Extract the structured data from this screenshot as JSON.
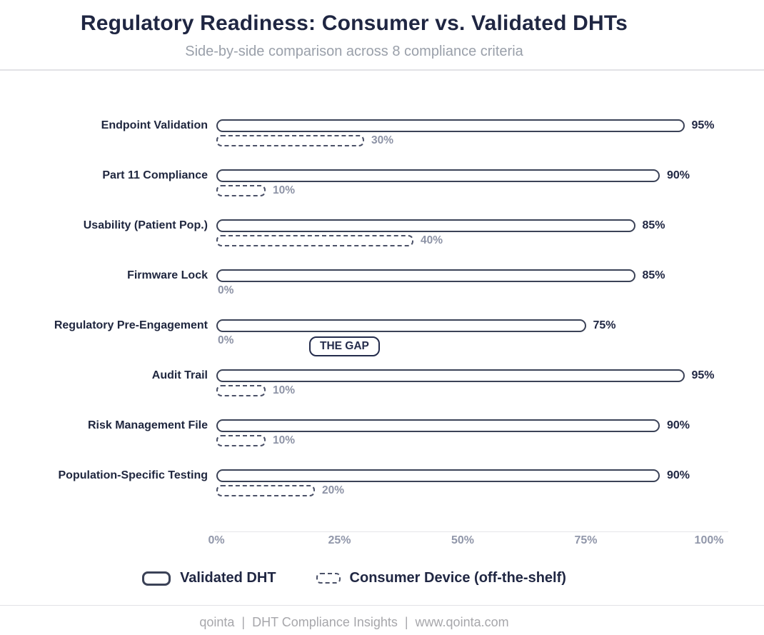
{
  "header": {
    "title": "Regulatory Readiness: Consumer vs. Validated DHTs",
    "subtitle": "Side-by-side comparison across 8 compliance criteria"
  },
  "chart_data": {
    "type": "bar",
    "orientation": "horizontal",
    "title": "Regulatory Readiness: Consumer vs. Validated DHTs",
    "subtitle": "Side-by-side comparison across 8 compliance criteria",
    "categories": [
      "Endpoint Validation",
      "Part 11 Compliance",
      "Usability (Patient Pop.)",
      "Firmware Lock",
      "Regulatory Pre-Engagement",
      "Audit Trail",
      "Risk Management File",
      "Population-Specific Testing"
    ],
    "series": [
      {
        "name": "Validated DHT",
        "style": "solid",
        "values": [
          95,
          90,
          85,
          85,
          75,
          95,
          90,
          90
        ]
      },
      {
        "name": "Consumer Device (off-the-shelf)",
        "style": "dashed",
        "values": [
          30,
          10,
          40,
          0,
          0,
          10,
          10,
          20
        ]
      }
    ],
    "value_suffix": "%",
    "xlabel": "",
    "ylabel": "",
    "xlim": [
      0,
      100
    ],
    "x_ticks": [
      "0%",
      "25%",
      "50%",
      "75%",
      "100%"
    ],
    "annotation": "THE GAP",
    "legend_position": "bottom",
    "grid": false
  },
  "footer": {
    "text": "qointa  |  DHT Compliance Insights  |  www.qointa.com"
  },
  "colors": {
    "ink": "#1f2642",
    "bar_outline": "#3b4257",
    "dashed_outline": "#4b5168",
    "muted_value": "#8d93a6",
    "tick": "#9197aa",
    "subtitle": "#9aa0aa",
    "footer_text": "#a7a7ab",
    "divider": "#e2e2e6",
    "background": "#ffffff"
  }
}
